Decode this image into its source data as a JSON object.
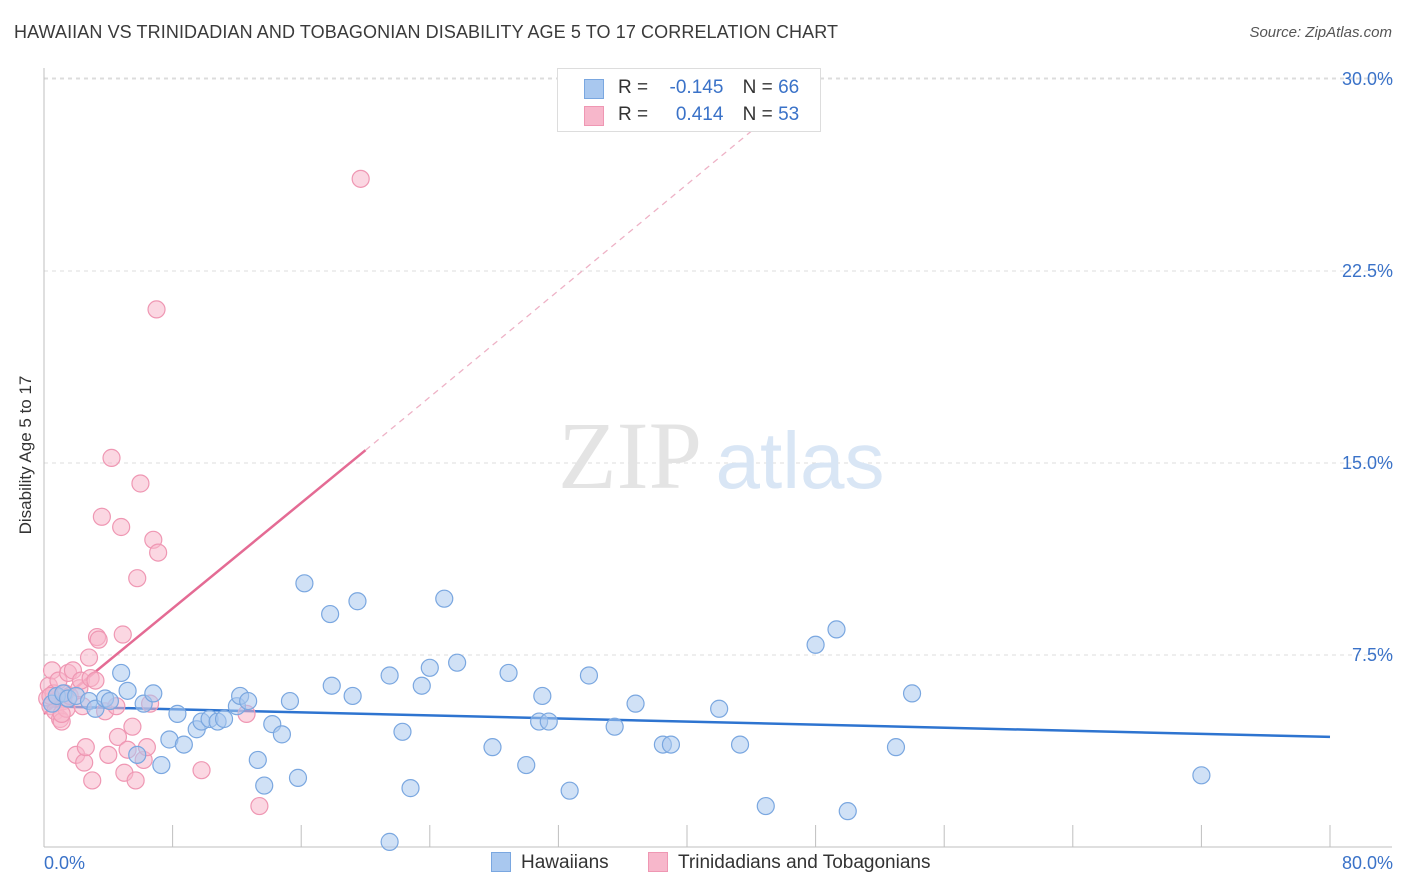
{
  "header": {
    "title": "HAWAIIAN VS TRINIDADIAN AND TOBAGONIAN DISABILITY AGE 5 TO 17 CORRELATION CHART",
    "source": "Source: ZipAtlas.com"
  },
  "legend": {
    "rows": [
      {
        "r_label": "R =",
        "r_value": "-0.145",
        "n_label": "N =",
        "n_value": "66"
      },
      {
        "r_label": "R =",
        "r_value": "0.414",
        "n_label": "N =",
        "n_value": "53"
      }
    ]
  },
  "watermark": {
    "zip": "ZIP",
    "atlas": "atlas"
  },
  "colors": {
    "blue_fill": "#a9c8ef",
    "blue_stroke": "#7aa7e0",
    "blue_line": "#2e74d0",
    "pink_fill": "#f7b7cb",
    "pink_stroke": "#ef97b3",
    "pink_line": "#e46b94",
    "tick_label": "#3a72c8"
  },
  "chart_data": {
    "type": "scatter",
    "title": "HAWAIIAN VS TRINIDADIAN AND TOBAGONIAN DISABILITY AGE 5 TO 17 CORRELATION CHART",
    "xlabel": "",
    "ylabel": "Disability Age 5 to 17",
    "xlim": [
      0,
      80
    ],
    "ylim": [
      0,
      30
    ],
    "x_tick_labels": [
      "0.0%",
      "80.0%"
    ],
    "y_ticks": [
      7.5,
      15.0,
      22.5,
      30.0
    ],
    "y_tick_labels": [
      "7.5%",
      "15.0%",
      "22.5%",
      "30.0%"
    ],
    "grid": true,
    "legend_placement": "bottom",
    "series": [
      {
        "name": "Hawaiians",
        "color": "#a9c8ef",
        "points": [
          [
            0.5,
            5.6
          ],
          [
            0.8,
            5.9
          ],
          [
            1.2,
            6.0
          ],
          [
            1.5,
            5.8
          ],
          [
            2.0,
            5.9
          ],
          [
            2.8,
            5.7
          ],
          [
            3.2,
            5.4
          ],
          [
            3.8,
            5.8
          ],
          [
            4.1,
            5.7
          ],
          [
            4.8,
            6.8
          ],
          [
            5.2,
            6.1
          ],
          [
            5.8,
            3.6
          ],
          [
            6.2,
            5.6
          ],
          [
            6.8,
            6.0
          ],
          [
            7.3,
            3.2
          ],
          [
            7.8,
            4.2
          ],
          [
            8.3,
            5.2
          ],
          [
            8.7,
            4.0
          ],
          [
            9.5,
            4.6
          ],
          [
            9.8,
            4.9
          ],
          [
            10.3,
            5.0
          ],
          [
            10.8,
            4.9
          ],
          [
            11.2,
            5.0
          ],
          [
            12.0,
            5.5
          ],
          [
            12.2,
            5.9
          ],
          [
            12.7,
            5.7
          ],
          [
            13.3,
            3.4
          ],
          [
            13.7,
            2.4
          ],
          [
            14.2,
            4.8
          ],
          [
            14.8,
            4.4
          ],
          [
            15.3,
            5.7
          ],
          [
            15.8,
            2.7
          ],
          [
            16.2,
            10.3
          ],
          [
            17.8,
            9.1
          ],
          [
            17.9,
            6.3
          ],
          [
            19.2,
            5.9
          ],
          [
            19.5,
            9.6
          ],
          [
            21.5,
            6.7
          ],
          [
            22.3,
            4.5
          ],
          [
            22.8,
            2.3
          ],
          [
            23.5,
            6.3
          ],
          [
            24.0,
            7.0
          ],
          [
            24.9,
            9.7
          ],
          [
            25.7,
            7.2
          ],
          [
            27.9,
            3.9
          ],
          [
            28.9,
            6.8
          ],
          [
            30.0,
            3.2
          ],
          [
            30.8,
            4.9
          ],
          [
            31.0,
            5.9
          ],
          [
            31.4,
            4.9
          ],
          [
            32.7,
            2.2
          ],
          [
            33.9,
            6.7
          ],
          [
            35.5,
            4.7
          ],
          [
            36.8,
            5.6
          ],
          [
            38.5,
            4.0
          ],
          [
            39.0,
            4.0
          ],
          [
            42.0,
            5.4
          ],
          [
            43.3,
            4.0
          ],
          [
            44.9,
            1.6
          ],
          [
            48.0,
            7.9
          ],
          [
            49.3,
            8.5
          ],
          [
            50.0,
            1.4
          ],
          [
            53.0,
            3.9
          ],
          [
            54.0,
            6.0
          ],
          [
            72.0,
            2.8
          ],
          [
            21.5,
            0.2
          ]
        ],
        "trend": {
          "x": [
            0,
            80
          ],
          "y": [
            5.5,
            4.3
          ]
        }
      },
      {
        "name": "Trinidadians and Tobagonians",
        "color": "#f7b7cb",
        "points": [
          [
            0.2,
            5.8
          ],
          [
            0.3,
            6.3
          ],
          [
            0.4,
            5.5
          ],
          [
            0.5,
            6.9
          ],
          [
            0.6,
            6.0
          ],
          [
            0.7,
            5.3
          ],
          [
            0.9,
            6.5
          ],
          [
            1.0,
            5.0
          ],
          [
            1.1,
            4.9
          ],
          [
            1.2,
            5.7
          ],
          [
            1.3,
            6.0
          ],
          [
            1.4,
            5.4
          ],
          [
            1.5,
            6.8
          ],
          [
            1.6,
            5.9
          ],
          [
            1.8,
            6.9
          ],
          [
            2.0,
            3.6
          ],
          [
            2.2,
            6.2
          ],
          [
            2.3,
            6.5
          ],
          [
            2.4,
            5.5
          ],
          [
            2.5,
            3.3
          ],
          [
            2.6,
            3.9
          ],
          [
            2.8,
            7.4
          ],
          [
            2.9,
            6.6
          ],
          [
            3.0,
            2.6
          ],
          [
            3.2,
            6.5
          ],
          [
            3.3,
            8.2
          ],
          [
            3.4,
            8.1
          ],
          [
            3.6,
            12.9
          ],
          [
            3.8,
            5.3
          ],
          [
            4.0,
            3.6
          ],
          [
            4.2,
            15.2
          ],
          [
            4.5,
            5.5
          ],
          [
            4.6,
            4.3
          ],
          [
            4.8,
            12.5
          ],
          [
            4.9,
            8.3
          ],
          [
            5.0,
            2.9
          ],
          [
            5.2,
            3.8
          ],
          [
            5.5,
            4.7
          ],
          [
            5.7,
            2.6
          ],
          [
            5.8,
            10.5
          ],
          [
            6.0,
            14.2
          ],
          [
            6.2,
            3.4
          ],
          [
            6.4,
            3.9
          ],
          [
            6.6,
            5.6
          ],
          [
            6.8,
            12.0
          ],
          [
            7.0,
            21.0
          ],
          [
            7.1,
            11.5
          ],
          [
            9.8,
            3.0
          ],
          [
            12.6,
            5.2
          ],
          [
            13.4,
            1.6
          ],
          [
            19.7,
            26.1
          ],
          [
            0.4,
            5.9
          ],
          [
            1.1,
            5.2
          ]
        ],
        "trend": {
          "x": [
            0,
            20
          ],
          "y": [
            5.2,
            15.5
          ],
          "extended": {
            "x": [
              20,
              46
            ],
            "y": [
              15.5,
              29.0
            ]
          }
        }
      }
    ]
  }
}
